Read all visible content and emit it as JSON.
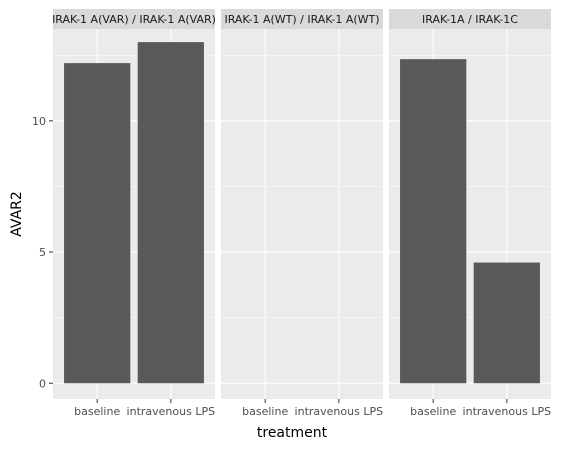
{
  "chart_data": {
    "type": "bar",
    "xlabel": "treatment",
    "ylabel": "AVAR2",
    "categories": [
      "baseline",
      "intravenous LPS"
    ],
    "y_ticks": [
      0,
      5,
      10
    ],
    "ylim": [
      -0.6,
      13.5
    ],
    "grid": true,
    "legend": "none",
    "bar_color": "#595959",
    "panel_color": "#ebebeb",
    "strip_color": "#d9d9d9",
    "facets": [
      {
        "label": "IRAK-1 A(VAR) /  IRAK-1 A(VAR)",
        "values": [
          12.2,
          13.0
        ]
      },
      {
        "label": "IRAK-1 A(WT) /  IRAK-1 A(WT)",
        "values": [
          0,
          0
        ]
      },
      {
        "label": "IRAK-1A / IRAK-1C",
        "values": [
          12.35,
          4.6
        ]
      }
    ]
  }
}
